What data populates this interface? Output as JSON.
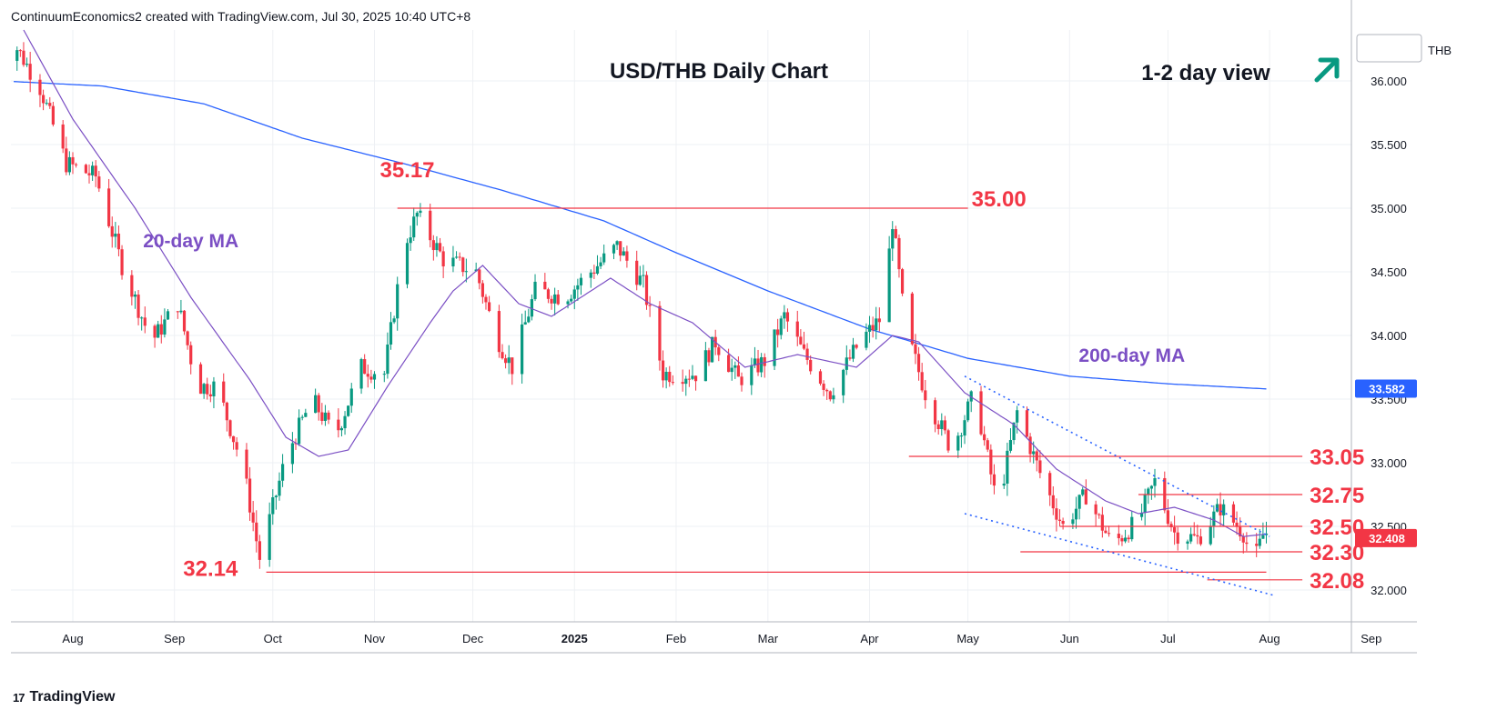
{
  "header": {
    "text": "ContinuumEconomics2 created with TradingView.com, Jul 30, 2025 10:40 UTC+8"
  },
  "brand": {
    "logo_text": "TradingView",
    "logo_mark": "17"
  },
  "chart_data": {
    "type": "candlestick",
    "title": "USD/THB Daily Chart",
    "view_label": "1-2 day view",
    "view_direction_icon": "arrow-up-right-icon",
    "currency_label": "THB",
    "current_price_label": "32.408",
    "ma200_price_label": "33.582",
    "ylim": [
      31.75,
      36.4
    ],
    "y_ticks": [
      "32.000",
      "32.500",
      "33.000",
      "33.500",
      "34.000",
      "34.500",
      "35.000",
      "35.500",
      "36.000"
    ],
    "x_ticks": [
      "Aug",
      "Sep",
      "Oct",
      "Nov",
      "Dec",
      "2025",
      "Feb",
      "Mar",
      "Apr",
      "May",
      "Jun",
      "Jul",
      "Aug",
      "Sep"
    ],
    "x_tick_dates": [
      "2024-08-01",
      "2024-09-01",
      "2024-10-01",
      "2024-11-01",
      "2024-12-01",
      "2025-01-01",
      "2025-02-01",
      "2025-03-01",
      "2025-04-01",
      "2025-05-01",
      "2025-06-01",
      "2025-07-01",
      "2025-08-01",
      "2025-09-01"
    ],
    "colors": {
      "up": "#089981",
      "down": "#f23645",
      "ma20": "#7b4fc4",
      "ma200": "#2962ff",
      "level": "#f23645",
      "trend": "#2962ff",
      "label": "#f23645",
      "arrow": "#089981"
    },
    "annotations": [
      {
        "text": "20-day MA",
        "date": "2024-09-06",
        "price": 34.75
      },
      {
        "text": "200-day MA",
        "date": "2025-06-20",
        "price": 33.85
      }
    ],
    "levels": [
      {
        "label": "35.17",
        "price": 35.17,
        "line": false,
        "label_date": "2024-11-11"
      },
      {
        "label": "35.00",
        "price": 35.0,
        "from": "2024-11-08",
        "to": "2025-05-01"
      },
      {
        "label": "33.05",
        "price": 33.05,
        "from": "2025-04-13",
        "to": "2025-08-11"
      },
      {
        "label": "32.75",
        "price": 32.75,
        "from": "2025-06-22",
        "to": "2025-08-11"
      },
      {
        "label": "32.50",
        "price": 32.5,
        "from": "2025-05-29",
        "to": "2025-08-11"
      },
      {
        "label": "32.30",
        "price": 32.3,
        "from": "2025-05-17",
        "to": "2025-08-11"
      },
      {
        "label": "32.14",
        "price": 32.14,
        "from": "2024-09-29",
        "to": "2025-07-31",
        "label_date": "2024-09-12"
      },
      {
        "label": "32.08",
        "price": 32.08,
        "from": "2025-07-13",
        "to": "2025-08-11"
      }
    ],
    "trendlines": [
      {
        "name": "upper",
        "from": [
          "2025-04-30",
          33.68
        ],
        "to": [
          "2025-08-01",
          32.42
        ]
      },
      {
        "name": "lower",
        "from": [
          "2025-04-30",
          32.6
        ],
        "to": [
          "2025-08-02",
          31.96
        ]
      }
    ],
    "ohlc_anchors": [
      [
        "2024-07-10",
        36.15
      ],
      [
        "2024-07-14",
        36.3
      ],
      [
        "2024-07-22",
        35.95
      ],
      [
        "2024-07-30",
        35.35
      ],
      [
        "2024-08-08",
        35.25
      ],
      [
        "2024-08-16",
        34.55
      ],
      [
        "2024-08-25",
        33.95
      ],
      [
        "2024-09-02",
        34.25
      ],
      [
        "2024-09-08",
        33.6
      ],
      [
        "2024-09-14",
        33.6
      ],
      [
        "2024-09-22",
        32.95
      ],
      [
        "2024-09-27",
        32.25
      ],
      [
        "2024-10-05",
        33.05
      ],
      [
        "2024-10-13",
        33.5
      ],
      [
        "2024-10-20",
        33.2
      ],
      [
        "2024-10-28",
        33.75
      ],
      [
        "2024-11-04",
        33.7
      ],
      [
        "2024-11-10",
        34.7
      ],
      [
        "2024-11-14",
        34.95
      ],
      [
        "2024-11-22",
        34.6
      ],
      [
        "2024-12-02",
        34.5
      ],
      [
        "2024-12-08",
        34.0
      ],
      [
        "2024-12-13",
        33.75
      ],
      [
        "2024-12-20",
        34.35
      ],
      [
        "2024-12-29",
        34.3
      ],
      [
        "2025-01-06",
        34.5
      ],
      [
        "2025-01-14",
        34.7
      ],
      [
        "2025-01-22",
        34.4
      ],
      [
        "2025-01-28",
        33.7
      ],
      [
        "2025-02-07",
        33.7
      ],
      [
        "2025-02-13",
        33.95
      ],
      [
        "2025-02-20",
        33.65
      ],
      [
        "2025-02-28",
        33.8
      ],
      [
        "2025-03-06",
        34.15
      ],
      [
        "2025-03-12",
        33.85
      ],
      [
        "2025-03-20",
        33.55
      ],
      [
        "2025-03-29",
        33.95
      ],
      [
        "2025-04-05",
        34.15
      ],
      [
        "2025-04-08",
        34.9
      ],
      [
        "2025-04-12",
        34.05
      ],
      [
        "2025-04-18",
        33.55
      ],
      [
        "2025-04-26",
        33.1
      ],
      [
        "2025-05-03",
        33.55
      ],
      [
        "2025-05-10",
        32.65
      ],
      [
        "2025-05-16",
        33.4
      ],
      [
        "2025-05-24",
        32.85
      ],
      [
        "2025-05-30",
        32.5
      ],
      [
        "2025-06-06",
        32.75
      ],
      [
        "2025-06-14",
        32.35
      ],
      [
        "2025-06-22",
        32.55
      ],
      [
        "2025-06-27",
        32.85
      ],
      [
        "2025-07-03",
        32.45
      ],
      [
        "2025-07-10",
        32.4
      ],
      [
        "2025-07-17",
        32.65
      ],
      [
        "2025-07-24",
        32.45
      ],
      [
        "2025-07-27",
        32.2
      ],
      [
        "2025-07-30",
        32.43
      ],
      [
        "2025-07-31",
        32.45
      ]
    ],
    "ma20_anchors": [
      [
        "2024-07-17",
        36.4
      ],
      [
        "2024-08-01",
        35.7
      ],
      [
        "2024-08-20",
        35.0
      ],
      [
        "2024-09-06",
        34.3
      ],
      [
        "2024-09-24",
        33.65
      ],
      [
        "2024-10-05",
        33.2
      ],
      [
        "2024-10-15",
        33.05
      ],
      [
        "2024-10-24",
        33.1
      ],
      [
        "2024-11-05",
        33.6
      ],
      [
        "2024-11-18",
        34.1
      ],
      [
        "2024-11-25",
        34.35
      ],
      [
        "2024-12-04",
        34.55
      ],
      [
        "2024-12-15",
        34.25
      ],
      [
        "2024-12-25",
        34.15
      ],
      [
        "2025-01-12",
        34.45
      ],
      [
        "2025-01-24",
        34.25
      ],
      [
        "2025-02-06",
        34.1
      ],
      [
        "2025-02-22",
        33.75
      ],
      [
        "2025-03-10",
        33.85
      ],
      [
        "2025-03-28",
        33.75
      ],
      [
        "2025-04-08",
        34.0
      ],
      [
        "2025-04-16",
        33.95
      ],
      [
        "2025-04-30",
        33.55
      ],
      [
        "2025-05-15",
        33.3
      ],
      [
        "2025-05-28",
        32.95
      ],
      [
        "2025-06-12",
        32.7
      ],
      [
        "2025-06-22",
        32.6
      ],
      [
        "2025-07-03",
        32.65
      ],
      [
        "2025-07-15",
        32.55
      ],
      [
        "2025-07-24",
        32.42
      ],
      [
        "2025-07-31",
        32.44
      ]
    ],
    "ma200_anchors": [
      [
        "2024-07-10",
        36.0
      ],
      [
        "2024-08-10",
        35.96
      ],
      [
        "2024-09-10",
        35.82
      ],
      [
        "2024-10-10",
        35.55
      ],
      [
        "2024-11-10",
        35.35
      ],
      [
        "2024-12-10",
        35.14
      ],
      [
        "2025-01-10",
        34.9
      ],
      [
        "2025-02-01",
        34.65
      ],
      [
        "2025-03-01",
        34.35
      ],
      [
        "2025-04-01",
        34.05
      ],
      [
        "2025-05-01",
        33.82
      ],
      [
        "2025-06-01",
        33.68
      ],
      [
        "2025-07-01",
        33.62
      ],
      [
        "2025-07-31",
        33.58
      ]
    ]
  }
}
